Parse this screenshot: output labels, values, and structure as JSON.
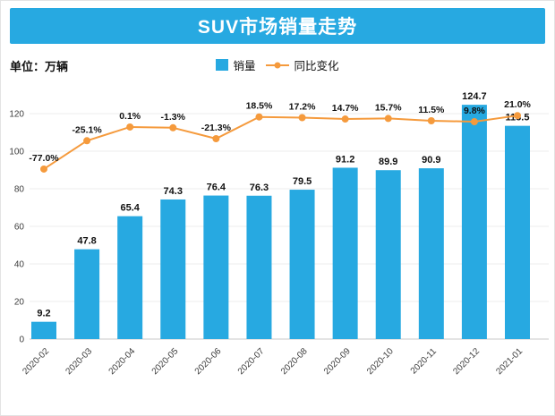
{
  "header": {
    "title": "SUV市场销量走势"
  },
  "unit_label": "单位：万辆",
  "legend": {
    "sales_label": "销量",
    "yoy_label": "同比变化"
  },
  "colors": {
    "banner": "#27A9E1",
    "bar": "#27A9E1",
    "line": "#F59A3C",
    "grid": "#ECECEC",
    "axis": "#C9C9C9",
    "value_text": "#111111",
    "axis_text": "#3C3C3C"
  },
  "chart_data": {
    "type": "bar",
    "combo": "bar+line",
    "title": "SUV市场销量走势",
    "unit": "万辆",
    "categories": [
      "2020-02",
      "2020-03",
      "2020-04",
      "2020-05",
      "2020-06",
      "2020-07",
      "2020-08",
      "2020-09",
      "2020-10",
      "2020-11",
      "2020-12",
      "2021-01"
    ],
    "series": [
      {
        "name": "销量",
        "type": "bar",
        "values": [
          9.2,
          47.8,
          65.4,
          74.3,
          76.4,
          76.3,
          79.5,
          91.2,
          89.9,
          90.9,
          124.7,
          113.5
        ]
      },
      {
        "name": "同比变化",
        "type": "line",
        "values_pct": [
          -77.0,
          -25.1,
          0.1,
          -1.3,
          -21.3,
          18.5,
          17.2,
          14.7,
          15.7,
          11.5,
          9.8,
          21.0
        ],
        "labels": [
          "-77.0%",
          "-25.1%",
          "0.1%",
          "-1.3%",
          "-21.3%",
          "18.5%",
          "17.2%",
          "14.7%",
          "15.7%",
          "11.5%",
          "9.8%",
          "21.0%"
        ]
      }
    ],
    "left_axis": {
      "ticks": [
        0,
        20,
        40,
        60,
        80,
        100,
        120
      ],
      "lim": [
        0,
        127
      ]
    },
    "legend_position": "top-center",
    "grid": true,
    "x_label_rotation": 45
  }
}
